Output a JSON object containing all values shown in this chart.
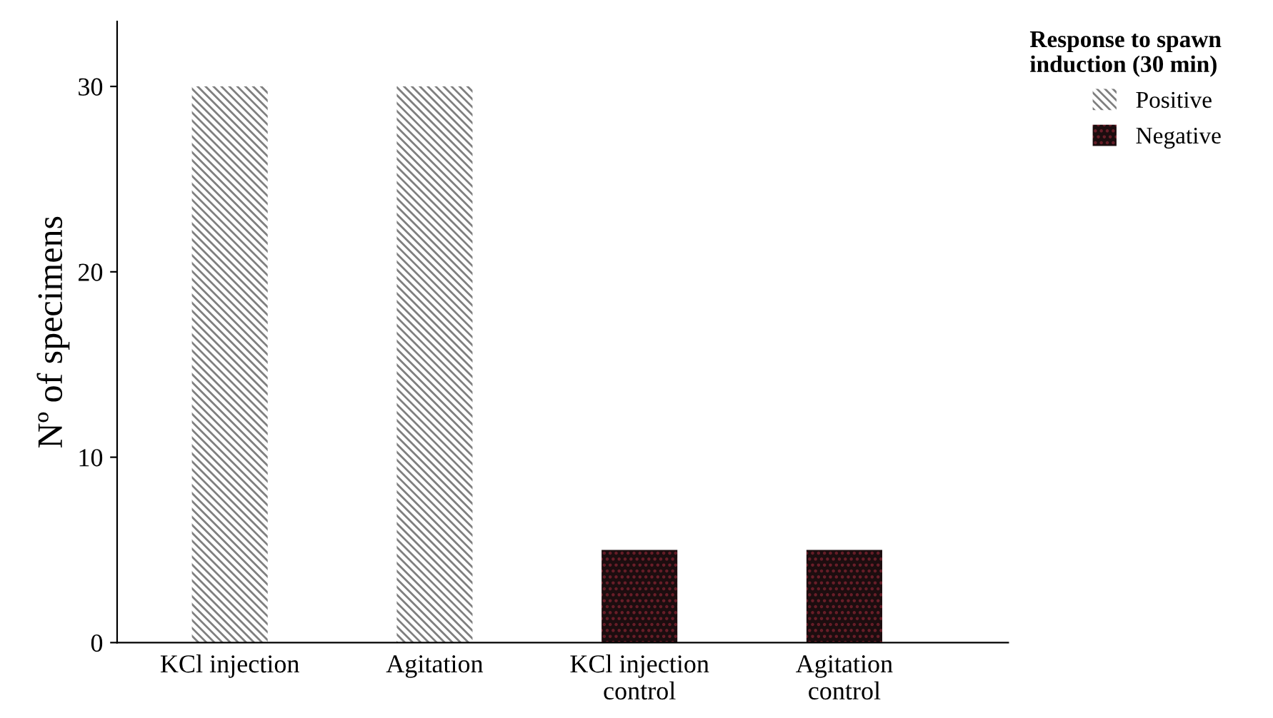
{
  "chart_data": {
    "type": "bar",
    "ylabel": "Nº of specimens",
    "legend_title": "Response to spawn induction (30 min)",
    "categories": [
      "KCl injection",
      "Agitation",
      "KCl injection\ncontrol",
      "Agitation\ncontrol"
    ],
    "series": [
      {
        "name": "Positive",
        "color": "#7f7f7f",
        "values": [
          30,
          30,
          null,
          null
        ]
      },
      {
        "name": "Negative",
        "color": "#1c0d0f",
        "values": [
          null,
          null,
          5,
          5
        ]
      }
    ],
    "ylim": [
      0,
      33.5
    ],
    "yticks": [
      0,
      10,
      20,
      30
    ],
    "grid": false,
    "legend": "top right"
  }
}
